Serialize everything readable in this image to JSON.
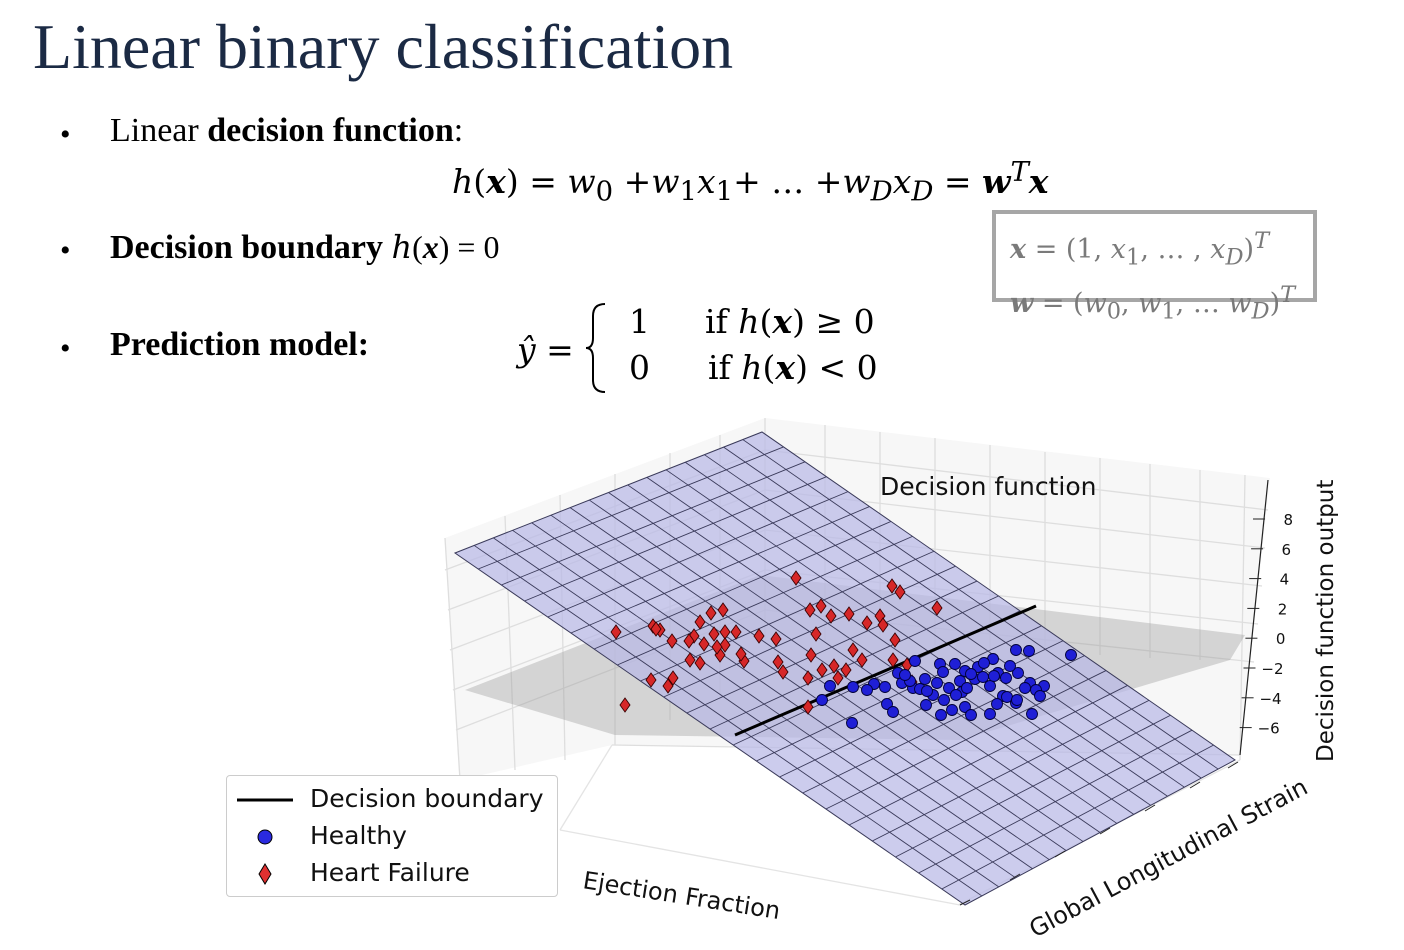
{
  "slide": {
    "title": "Linear binary classification",
    "bullets": [
      {
        "prefix": "Linear ",
        "bold": "decision function",
        "suffix": ":"
      },
      {
        "bold": "Decision boundary",
        "math": "h(x) = 0"
      },
      {
        "bold": "Prediction model:"
      }
    ],
    "equation": "h(x) = w0 + w1 x1 + … + wD xD = wT x",
    "infobox": [
      "x = (1, x1, …, xD)T",
      "w = (w0, w1, … wD)T"
    ],
    "prediction": {
      "lhs": "ŷ =",
      "cases": [
        {
          "value": "1",
          "condition": "if h(x) ≥ 0"
        },
        {
          "value": "0",
          "condition": "if h(x) < 0"
        }
      ]
    }
  },
  "chart_data": {
    "type": "scatter",
    "title": "Decision function",
    "xlabel": "Ejection Fraction",
    "ylabel": "Global Longitudinal Strain",
    "zlabel": "Decision function output",
    "zticks": [
      "8",
      "6",
      "4",
      "2",
      "0",
      "−2",
      "−4",
      "−6"
    ],
    "legend": {
      "placement": "lower-left",
      "entries": [
        {
          "label": "Decision boundary",
          "marker": "line",
          "color": "#000000"
        },
        {
          "label": "Healthy",
          "marker": "circle",
          "color": "#1f1fd6"
        },
        {
          "label": "Heart Failure",
          "marker": "diamond",
          "color": "#d62728"
        }
      ]
    },
    "colors": {
      "plane": "#b9b9e6",
      "healthy": "#1f1fd6",
      "failure": "#d62728"
    },
    "series": [
      {
        "name": "Healthy",
        "points": [
          [
            853,
            687
          ],
          [
            874,
            684
          ],
          [
            902,
            683
          ],
          [
            913,
            688
          ],
          [
            925,
            679
          ],
          [
            937,
            683
          ],
          [
            949,
            688
          ],
          [
            962,
            692
          ],
          [
            975,
            679
          ],
          [
            990,
            686
          ],
          [
            998,
            673
          ],
          [
            1006,
            678
          ],
          [
            1018,
            673
          ],
          [
            1030,
            683
          ],
          [
            1044,
            686
          ],
          [
            1071,
            655
          ],
          [
            993,
            659
          ],
          [
            1010,
            666
          ],
          [
            1016,
            650
          ],
          [
            1029,
            651
          ],
          [
            1003,
            696
          ],
          [
            1025,
            688
          ],
          [
            1036,
            690
          ],
          [
            1040,
            696
          ],
          [
            1007,
            697
          ],
          [
            983,
            677
          ],
          [
            960,
            681
          ],
          [
            956,
            695
          ],
          [
            944,
            700
          ],
          [
            933,
            695
          ],
          [
            920,
            689
          ],
          [
            910,
            681
          ],
          [
            898,
            673
          ],
          [
            915,
            661
          ],
          [
            940,
            664
          ],
          [
            955,
            664
          ],
          [
            965,
            671
          ],
          [
            978,
            667
          ],
          [
            926,
            705
          ],
          [
            941,
            715
          ],
          [
            952,
            710
          ],
          [
            965,
            707
          ],
          [
            971,
            715
          ],
          [
            990,
            714
          ],
          [
            997,
            704
          ],
          [
            1016,
            703
          ],
          [
            1032,
            714
          ],
          [
            887,
            704
          ],
          [
            893,
            712
          ],
          [
            885,
            687
          ],
          [
            867,
            690
          ],
          [
            852,
            723
          ],
          [
            830,
            686
          ],
          [
            822,
            700
          ],
          [
            927,
            691
          ],
          [
            943,
            672
          ],
          [
            971,
            674
          ],
          [
            984,
            663
          ],
          [
            1017,
            700
          ],
          [
            994,
            676
          ],
          [
            967,
            688
          ],
          [
            905,
            675
          ]
        ]
      },
      {
        "name": "Heart Failure",
        "points": [
          [
            616,
            632
          ],
          [
            653,
            626
          ],
          [
            660,
            630
          ],
          [
            672,
            641
          ],
          [
            694,
            636
          ],
          [
            700,
            622
          ],
          [
            704,
            644
          ],
          [
            714,
            634
          ],
          [
            725,
            632
          ],
          [
            720,
            655
          ],
          [
            725,
            645
          ],
          [
            736,
            632
          ],
          [
            744,
            661
          ],
          [
            759,
            636
          ],
          [
            778,
            662
          ],
          [
            783,
            672
          ],
          [
            776,
            639
          ],
          [
            796,
            578
          ],
          [
            810,
            610
          ],
          [
            821,
            606
          ],
          [
            816,
            634
          ],
          [
            831,
            616
          ],
          [
            834,
            666
          ],
          [
            838,
            678
          ],
          [
            846,
            670
          ],
          [
            853,
            650
          ],
          [
            862,
            660
          ],
          [
            867,
            623
          ],
          [
            880,
            616
          ],
          [
            883,
            625
          ],
          [
            892,
            586
          ],
          [
            900,
            592
          ],
          [
            907,
            665
          ],
          [
            912,
            682
          ],
          [
            937,
            608
          ],
          [
            625,
            705
          ],
          [
            651,
            680
          ],
          [
            668,
            686
          ],
          [
            673,
            678
          ],
          [
            689,
            641
          ],
          [
            700,
            663
          ],
          [
            711,
            613
          ],
          [
            723,
            610
          ],
          [
            741,
            654
          ],
          [
            808,
            678
          ],
          [
            822,
            670
          ],
          [
            808,
            707
          ],
          [
            690,
            660
          ],
          [
            656,
            629
          ],
          [
            717,
            647
          ],
          [
            849,
            614
          ],
          [
            893,
            660
          ],
          [
            895,
            640
          ],
          [
            811,
            655
          ]
        ]
      }
    ]
  }
}
